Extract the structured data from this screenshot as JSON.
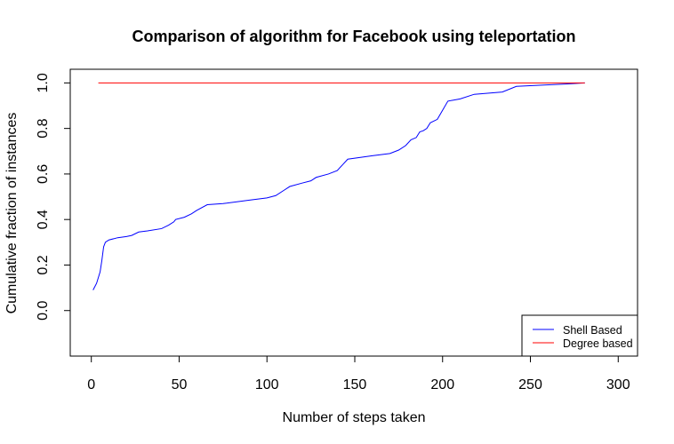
{
  "chart_data": {
    "type": "line",
    "title": "Comparison of algorithm for Facebook using teleportation",
    "xlabel": "Number of steps taken",
    "ylabel": "Cumulative fraction of instances",
    "xlim": [
      -12,
      311
    ],
    "ylim": [
      -0.2,
      1.06
    ],
    "xticks": [
      "0",
      "50",
      "100",
      "150",
      "200",
      "250",
      "300"
    ],
    "yticks": [
      "0.0",
      "0.2",
      "0.4",
      "0.6",
      "0.8",
      "1.0"
    ],
    "grid": false,
    "legend_position": "bottom-right",
    "series": [
      {
        "name": "Shell Based",
        "color": "#0000ff",
        "points": [
          [
            1,
            0.09
          ],
          [
            3,
            0.12
          ],
          [
            5,
            0.17
          ],
          [
            6,
            0.22
          ],
          [
            7,
            0.28
          ],
          [
            8,
            0.3
          ],
          [
            10,
            0.31
          ],
          [
            15,
            0.32
          ],
          [
            20,
            0.325
          ],
          [
            23,
            0.33
          ],
          [
            27,
            0.345
          ],
          [
            32,
            0.35
          ],
          [
            40,
            0.36
          ],
          [
            44,
            0.375
          ],
          [
            47,
            0.39
          ],
          [
            48,
            0.4
          ],
          [
            53,
            0.41
          ],
          [
            57,
            0.425
          ],
          [
            60,
            0.44
          ],
          [
            66,
            0.465
          ],
          [
            75,
            0.47
          ],
          [
            90,
            0.485
          ],
          [
            100,
            0.495
          ],
          [
            105,
            0.505
          ],
          [
            110,
            0.53
          ],
          [
            113,
            0.545
          ],
          [
            120,
            0.56
          ],
          [
            125,
            0.57
          ],
          [
            128,
            0.585
          ],
          [
            135,
            0.6
          ],
          [
            140,
            0.615
          ],
          [
            143,
            0.64
          ],
          [
            146,
            0.665
          ],
          [
            160,
            0.68
          ],
          [
            170,
            0.69
          ],
          [
            175,
            0.705
          ],
          [
            179,
            0.725
          ],
          [
            182,
            0.75
          ],
          [
            185,
            0.76
          ],
          [
            187,
            0.785
          ],
          [
            189,
            0.79
          ],
          [
            191,
            0.8
          ],
          [
            193,
            0.825
          ],
          [
            197,
            0.84
          ],
          [
            203,
            0.92
          ],
          [
            210,
            0.93
          ],
          [
            218,
            0.95
          ],
          [
            234,
            0.96
          ],
          [
            242,
            0.985
          ],
          [
            255,
            0.99
          ],
          [
            270,
            0.995
          ],
          [
            281,
            1.0
          ]
        ]
      },
      {
        "name": "Degree based",
        "color": "#ff0000",
        "points": [
          [
            4,
            1.0
          ],
          [
            281,
            1.0
          ]
        ]
      }
    ]
  }
}
